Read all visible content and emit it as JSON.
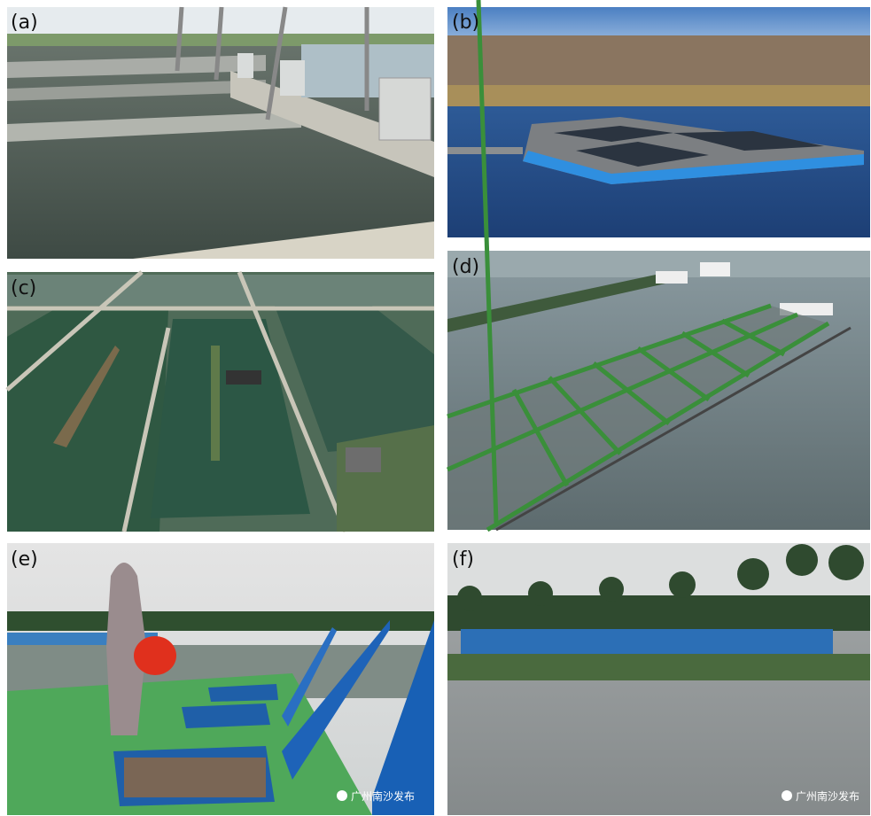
{
  "panels": [
    {
      "label": "(a)"
    },
    {
      "label": "(b)"
    },
    {
      "label": "(c)"
    },
    {
      "label": "(d)"
    },
    {
      "label": "(e)",
      "watermark": "广州南沙发布"
    },
    {
      "label": "(f)",
      "watermark": "广州南沙发布"
    }
  ]
}
